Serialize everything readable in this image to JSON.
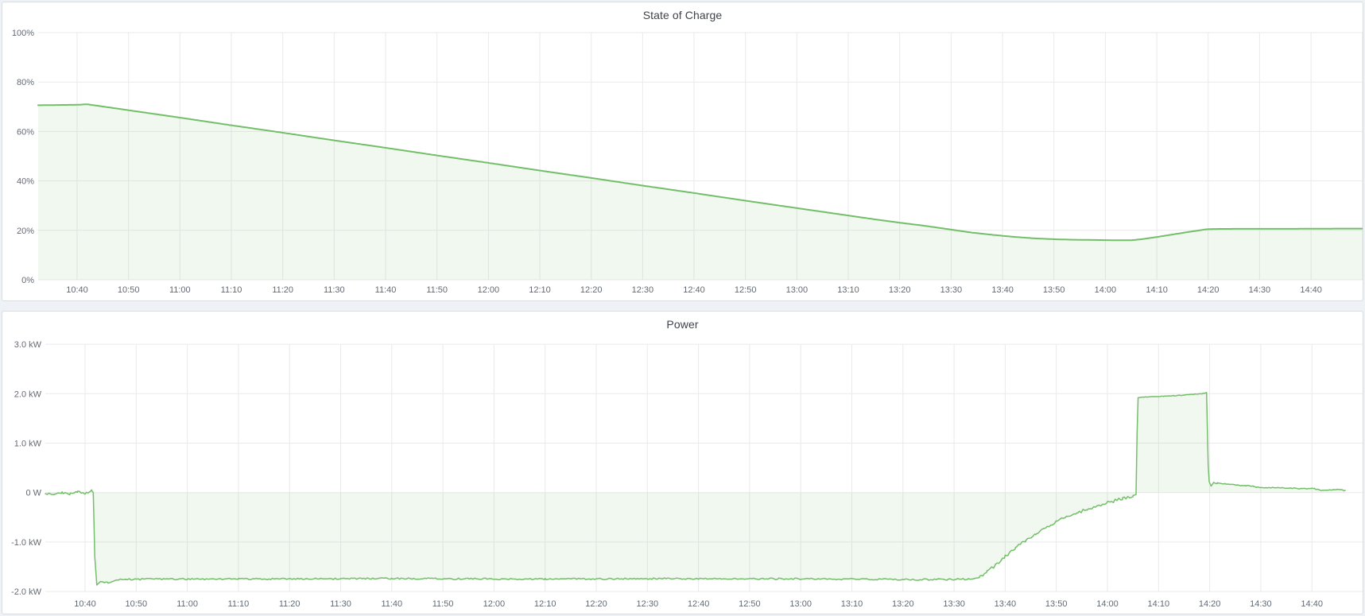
{
  "theme": {
    "line_color": "#73bf69",
    "fill_color": "rgba(115,191,105,0.10)",
    "grid_color": "#e9eaeb",
    "axis_text_color": "#646a73",
    "title_text_color": "#3f434a",
    "panel_bg": "#ffffff",
    "panel_border": "#dadde0",
    "page_bg": "#eef1f5"
  },
  "chart_data": [
    {
      "type": "area",
      "title": "State of Charge",
      "unit": "percent",
      "legend": "none",
      "grid": true,
      "x_range_minutes": [
        632.4,
        890
      ],
      "ylim": [
        0,
        100
      ],
      "y_ticks": [
        {
          "v": 0,
          "label": "0%"
        },
        {
          "v": 20,
          "label": "20%"
        },
        {
          "v": 40,
          "label": "40%"
        },
        {
          "v": 60,
          "label": "60%"
        },
        {
          "v": 80,
          "label": "80%"
        },
        {
          "v": 100,
          "label": "100%"
        }
      ],
      "x_ticks": [
        {
          "t": 640,
          "label": "10:40"
        },
        {
          "t": 650,
          "label": "10:50"
        },
        {
          "t": 660,
          "label": "11:00"
        },
        {
          "t": 670,
          "label": "11:10"
        },
        {
          "t": 680,
          "label": "11:20"
        },
        {
          "t": 690,
          "label": "11:30"
        },
        {
          "t": 700,
          "label": "11:40"
        },
        {
          "t": 710,
          "label": "11:50"
        },
        {
          "t": 720,
          "label": "12:00"
        },
        {
          "t": 730,
          "label": "12:10"
        },
        {
          "t": 740,
          "label": "12:20"
        },
        {
          "t": 750,
          "label": "12:30"
        },
        {
          "t": 760,
          "label": "12:40"
        },
        {
          "t": 770,
          "label": "12:50"
        },
        {
          "t": 780,
          "label": "13:00"
        },
        {
          "t": 790,
          "label": "13:10"
        },
        {
          "t": 800,
          "label": "13:20"
        },
        {
          "t": 810,
          "label": "13:30"
        },
        {
          "t": 820,
          "label": "13:40"
        },
        {
          "t": 830,
          "label": "13:50"
        },
        {
          "t": 840,
          "label": "14:00"
        },
        {
          "t": 850,
          "label": "14:10"
        },
        {
          "t": 860,
          "label": "14:20"
        },
        {
          "t": 870,
          "label": "14:30"
        },
        {
          "t": 880,
          "label": "14:40"
        },
        {
          "t": 890,
          "label": ""
        }
      ],
      "series": [
        {
          "name": "State of Charge",
          "points": [
            [
              632.4,
              70.6
            ],
            [
              636,
              70.7
            ],
            [
              640,
              70.8
            ],
            [
              642,
              71.0
            ],
            [
              650,
              68.6
            ],
            [
              660,
              65.6
            ],
            [
              670,
              62.5
            ],
            [
              680,
              59.5
            ],
            [
              690,
              56.4
            ],
            [
              700,
              53.4
            ],
            [
              710,
              50.3
            ],
            [
              720,
              47.3
            ],
            [
              730,
              44.2
            ],
            [
              740,
              41.2
            ],
            [
              750,
              38.1
            ],
            [
              760,
              35.1
            ],
            [
              770,
              32.0
            ],
            [
              780,
              29.0
            ],
            [
              790,
              26.0
            ],
            [
              795,
              24.5
            ],
            [
              800,
              23.1
            ],
            [
              805,
              21.8
            ],
            [
              810,
              20.3
            ],
            [
              814,
              19.1
            ],
            [
              818,
              18.2
            ],
            [
              822,
              17.4
            ],
            [
              826,
              16.8
            ],
            [
              830,
              16.4
            ],
            [
              834,
              16.2
            ],
            [
              838,
              16.1
            ],
            [
              842,
              16.0
            ],
            [
              845,
              16.0
            ],
            [
              847,
              16.4
            ],
            [
              850,
              17.3
            ],
            [
              853,
              18.3
            ],
            [
              856,
              19.3
            ],
            [
              858,
              19.9
            ],
            [
              859.5,
              20.4
            ],
            [
              861,
              20.55
            ],
            [
              865,
              20.6
            ],
            [
              870,
              20.6
            ],
            [
              875,
              20.6
            ],
            [
              880,
              20.65
            ],
            [
              885,
              20.7
            ],
            [
              890,
              20.7
            ]
          ],
          "noise_segments": []
        }
      ]
    },
    {
      "type": "area",
      "title": "Power",
      "unit": "watt",
      "legend": "none",
      "grid": true,
      "x_range_minutes": [
        632.2,
        890
      ],
      "ylim": [
        -2.1,
        3.0
      ],
      "y_ticks": [
        {
          "v": -2,
          "label": "-2.0 kW"
        },
        {
          "v": -1,
          "label": "-1.0 kW"
        },
        {
          "v": 0,
          "label": "0 W"
        },
        {
          "v": 1,
          "label": "1.0 kW"
        },
        {
          "v": 2,
          "label": "2.0 kW"
        },
        {
          "v": 3,
          "label": "3.0 kW"
        }
      ],
      "x_ticks": [
        {
          "t": 640,
          "label": "10:40"
        },
        {
          "t": 650,
          "label": "10:50"
        },
        {
          "t": 660,
          "label": "11:00"
        },
        {
          "t": 670,
          "label": "11:10"
        },
        {
          "t": 680,
          "label": "11:20"
        },
        {
          "t": 690,
          "label": "11:30"
        },
        {
          "t": 700,
          "label": "11:40"
        },
        {
          "t": 710,
          "label": "11:50"
        },
        {
          "t": 720,
          "label": "12:00"
        },
        {
          "t": 730,
          "label": "12:10"
        },
        {
          "t": 740,
          "label": "12:20"
        },
        {
          "t": 750,
          "label": "12:30"
        },
        {
          "t": 760,
          "label": "12:40"
        },
        {
          "t": 770,
          "label": "12:50"
        },
        {
          "t": 780,
          "label": "13:00"
        },
        {
          "t": 790,
          "label": "13:10"
        },
        {
          "t": 800,
          "label": "13:20"
        },
        {
          "t": 810,
          "label": "13:30"
        },
        {
          "t": 820,
          "label": "13:40"
        },
        {
          "t": 830,
          "label": "13:50"
        },
        {
          "t": 840,
          "label": "14:00"
        },
        {
          "t": 850,
          "label": "14:10"
        },
        {
          "t": 860,
          "label": "14:20"
        },
        {
          "t": 870,
          "label": "14:30"
        },
        {
          "t": 880,
          "label": "14:40"
        },
        {
          "t": 890,
          "label": ""
        }
      ],
      "series": [
        {
          "name": "Power",
          "points": [
            [
              632.2,
              -0.02
            ],
            [
              634,
              -0.03
            ],
            [
              635.5,
              0.0
            ],
            [
              637,
              -0.03
            ],
            [
              638.5,
              0.02
            ],
            [
              640,
              -0.02
            ],
            [
              640.8,
              0.0
            ],
            [
              641.3,
              0.06
            ],
            [
              641.6,
              0.0
            ],
            [
              641.9,
              -1.3
            ],
            [
              642.3,
              -1.87
            ],
            [
              643,
              -1.8
            ],
            [
              644.5,
              -1.82
            ],
            [
              646,
              -1.77
            ],
            [
              648,
              -1.76
            ],
            [
              652,
              -1.75
            ],
            [
              670,
              -1.75
            ],
            [
              700,
              -1.74
            ],
            [
              730,
              -1.75
            ],
            [
              760,
              -1.74
            ],
            [
              790,
              -1.75
            ],
            [
              805,
              -1.76
            ],
            [
              813,
              -1.75
            ],
            [
              815,
              -1.72
            ],
            [
              816.5,
              -1.6
            ],
            [
              818,
              -1.48
            ],
            [
              820,
              -1.29
            ],
            [
              822,
              -1.12
            ],
            [
              824,
              -0.97
            ],
            [
              826,
              -0.83
            ],
            [
              828,
              -0.7
            ],
            [
              830,
              -0.59
            ],
            [
              832,
              -0.49
            ],
            [
              834,
              -0.41
            ],
            [
              836,
              -0.34
            ],
            [
              838,
              -0.27
            ],
            [
              840,
              -0.21
            ],
            [
              841.5,
              -0.16
            ],
            [
              843,
              -0.12
            ],
            [
              844,
              -0.09
            ],
            [
              845,
              -0.06
            ],
            [
              845.6,
              -0.04
            ],
            [
              845.8,
              1.2
            ],
            [
              846,
              1.92
            ],
            [
              847,
              1.93
            ],
            [
              849,
              1.94
            ],
            [
              851,
              1.95
            ],
            [
              853,
              1.96
            ],
            [
              855,
              1.97
            ],
            [
              857,
              1.99
            ],
            [
              858.5,
              2.0
            ],
            [
              859.4,
              2.02
            ],
            [
              859.7,
              0.6
            ],
            [
              859.9,
              0.22
            ],
            [
              860.3,
              0.13
            ],
            [
              860.7,
              0.2
            ],
            [
              861.5,
              0.19
            ],
            [
              863,
              0.18
            ],
            [
              864.5,
              0.17
            ],
            [
              865.2,
              0.15
            ],
            [
              867,
              0.14
            ],
            [
              868.6,
              0.13
            ],
            [
              869.2,
              0.11
            ],
            [
              871,
              0.1
            ],
            [
              874,
              0.1
            ],
            [
              875.5,
              0.09
            ],
            [
              878,
              0.08
            ],
            [
              880.5,
              0.08
            ],
            [
              881.5,
              0.05
            ],
            [
              883.5,
              0.05
            ],
            [
              885.5,
              0.06
            ],
            [
              886.5,
              0.04
            ]
          ],
          "noise_segments": [
            [
              632.2,
              641.4,
              0.018
            ],
            [
              643.5,
              814.0,
              0.016
            ],
            [
              815.0,
              845.0,
              0.03
            ],
            [
              846.5,
              859.4,
              0.006
            ],
            [
              860.6,
              886.5,
              0.009
            ]
          ]
        }
      ]
    }
  ]
}
